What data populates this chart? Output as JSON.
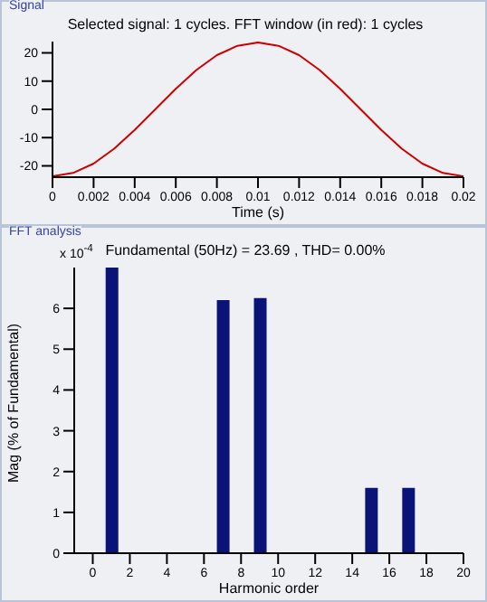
{
  "chart_data": [
    {
      "type": "line",
      "annotations": [
        "Signal"
      ],
      "title": "Selected signal: 1 cycles. FFT window (in red): 1 cycles",
      "xlabel": "Time (s)",
      "x": [
        0,
        0.001,
        0.002,
        0.003,
        0.004,
        0.005,
        0.006,
        0.007,
        0.008,
        0.009,
        0.01,
        0.011,
        0.012,
        0.013,
        0.014,
        0.015,
        0.016,
        0.017,
        0.018,
        0.019,
        0.02
      ],
      "series": [
        {
          "color": "#cc0000",
          "values": [
            -23.7,
            -22.5,
            -19.2,
            -13.9,
            -7.3,
            0,
            7.3,
            13.9,
            19.2,
            22.5,
            23.7,
            22.5,
            19.2,
            13.9,
            7.3,
            0,
            -7.3,
            -13.9,
            -19.2,
            -22.5,
            -23.7
          ]
        }
      ],
      "xlim": [
        0,
        0.02
      ],
      "xticks": [
        0,
        0.002,
        0.004,
        0.006,
        0.008,
        0.01,
        0.012,
        0.014,
        0.016,
        0.018,
        0.02
      ],
      "ylim": [
        -24,
        24
      ],
      "yticks": [
        -20,
        -10,
        0,
        10,
        20
      ],
      "grid": false,
      "legend": false,
      "marker": "none"
    },
    {
      "type": "bar",
      "annotations": [
        "FFT analysis",
        "x 10$^{-4}$"
      ],
      "title": "Fundamental (50Hz) = 23.69 , THD= 0.00%",
      "xlabel": "Harmonic order",
      "ylabel": "Mag (% of Fundamental)",
      "x": [
        0,
        1,
        2,
        3,
        4,
        5,
        6,
        7,
        8,
        9,
        10,
        11,
        12,
        13,
        14,
        15,
        16,
        17,
        18,
        19
      ],
      "values": [
        0,
        7,
        0,
        0,
        0,
        0,
        0,
        6.2,
        0,
        6.25,
        0,
        0,
        0,
        0,
        0,
        1.6,
        0,
        1.6,
        0,
        0
      ],
      "color": "#0a1478",
      "xlim": [
        -1,
        20
      ],
      "xticks": [
        0,
        2,
        4,
        6,
        8,
        10,
        12,
        14,
        16,
        18,
        20
      ],
      "ylim": [
        0,
        7
      ],
      "yticks": [
        0,
        1,
        2,
        3,
        4,
        5,
        6
      ],
      "grid": false,
      "legend": false
    }
  ]
}
